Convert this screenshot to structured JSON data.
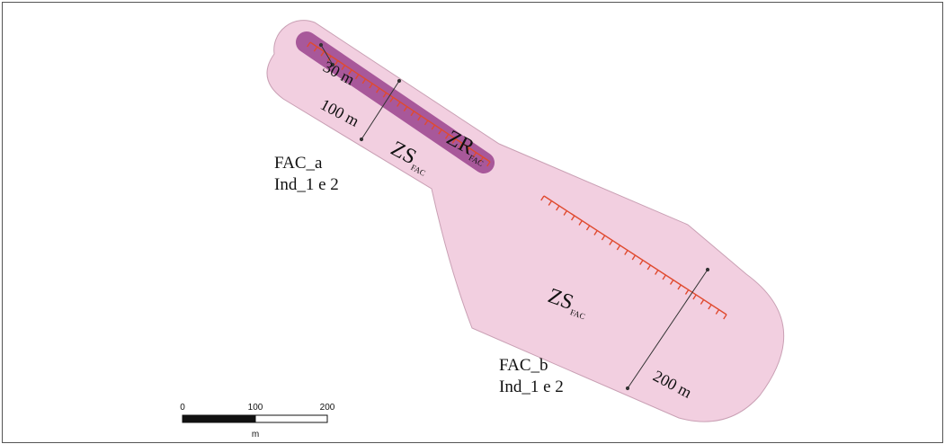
{
  "map": {
    "colors": {
      "safety_zone": "#f2cfe0",
      "safety_zone_border": "#c9a0b4",
      "restricted_zone": "#a8589a",
      "fault_ticks": "#e04a2f",
      "dimension_lines": "#333333",
      "frame": "#555555"
    },
    "labels": {
      "fac_a_name": "FAC_a",
      "fac_a_ind": "Ind_1 e 2",
      "fac_b_name": "FAC_b",
      "fac_b_ind": "Ind_1 e 2"
    },
    "zones": {
      "zs_main": "ZS",
      "zs_sub": "FAC",
      "zr_main": "ZR",
      "zr_sub": "FAC"
    },
    "dimensions": {
      "d30": "30 m",
      "d100": "100 m",
      "d200": "200 m"
    },
    "scale_bar": {
      "tick_0": "0",
      "tick_100": "100",
      "tick_200": "200",
      "unit": "m"
    }
  }
}
